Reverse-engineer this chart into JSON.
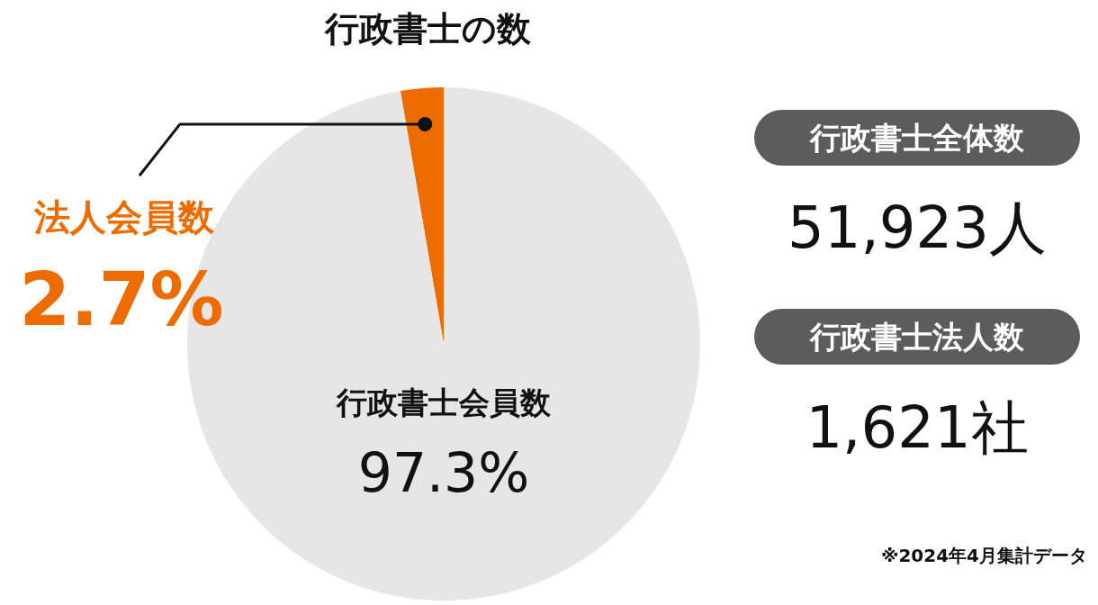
{
  "chart_data": [
    {
      "type": "pie",
      "title": "行政書士の数",
      "categories": [
        "法人会員数",
        "行政書士会員数"
      ],
      "values": [
        2.7,
        97.3
      ],
      "colors": [
        "#ec6c00",
        "#e6e6e6"
      ],
      "value_labels": [
        "2.7%",
        "97.3%"
      ],
      "legend": false
    },
    {
      "type": "other",
      "annotations": [
        "行政書士全体数",
        "51,923人",
        "行政書士法人数",
        "1,621社",
        "※2024年4月集計データ"
      ]
    }
  ]
}
